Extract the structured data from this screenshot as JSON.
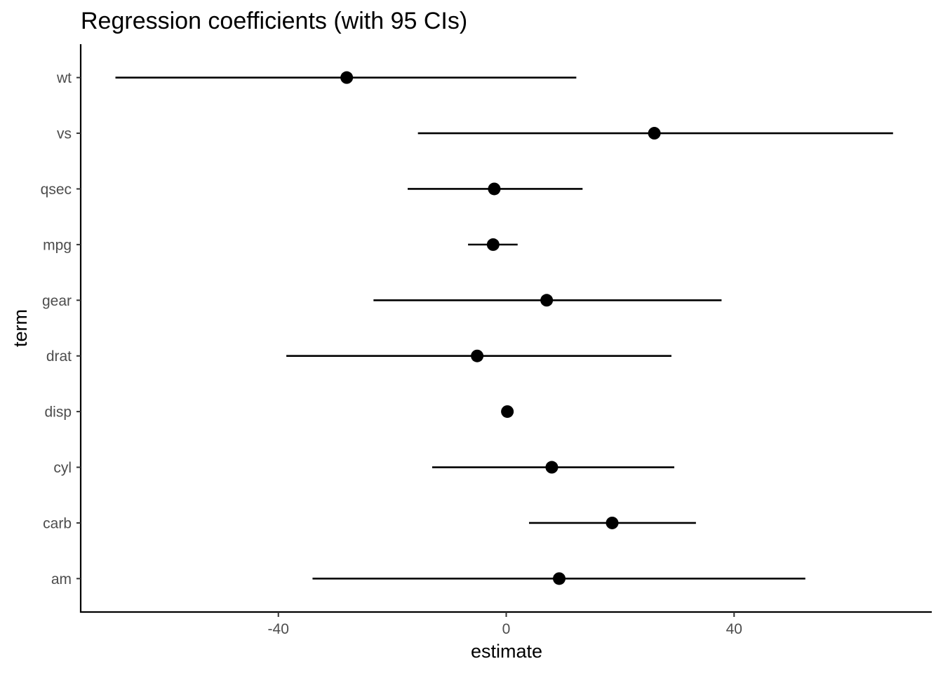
{
  "chart_data": {
    "type": "scatter",
    "subtype": "point-range (coefficient plot)",
    "title": "Regression coefficients (with 95 CIs)",
    "xlabel": "estimate",
    "ylabel": "term",
    "xlim": [
      -74.7,
      74.7
    ],
    "x_ticks": [
      -40,
      0,
      40
    ],
    "x_tick_labels": [
      "-40",
      "0",
      "40"
    ],
    "grid": false,
    "legend": "none",
    "point_color": "#000000",
    "terms": [
      "am",
      "carb",
      "cyl",
      "disp",
      "drat",
      "gear",
      "mpg",
      "qsec",
      "vs",
      "wt"
    ],
    "estimates": [
      9.3,
      18.6,
      8.0,
      0.2,
      -5.1,
      7.1,
      -2.3,
      -2.1,
      26.0,
      -28.0
    ],
    "ci_low": [
      -34.0,
      4.0,
      -13.0,
      -0.2,
      -38.6,
      -23.3,
      -6.7,
      -17.3,
      -15.5,
      -68.6
    ],
    "ci_high": [
      52.5,
      33.3,
      29.5,
      0.6,
      29.0,
      37.8,
      2.0,
      13.4,
      67.9,
      12.3
    ]
  }
}
